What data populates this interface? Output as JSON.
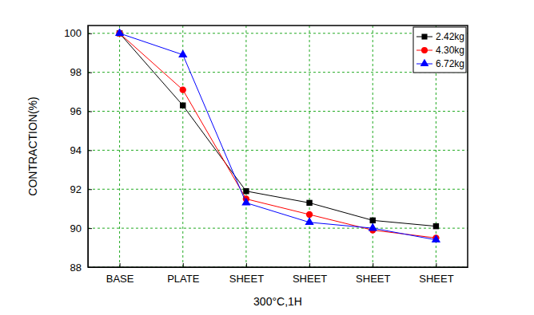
{
  "chart_data": {
    "type": "line",
    "x_label": "300°C,1H",
    "y_label": "CONTRACTION(%)",
    "categories": [
      "BASE",
      "PLATE",
      "SHEET",
      "SHEET",
      "SHEET",
      "SHEET"
    ],
    "series": [
      {
        "name": "2.42kg",
        "color": "#000000",
        "marker": "square",
        "line_style": "solid",
        "values": [
          100,
          96.3,
          91.9,
          91.3,
          90.4,
          90.1
        ]
      },
      {
        "name": "4.30kg",
        "color": "#ff0000",
        "marker": "circle",
        "line_style": "solid",
        "values": [
          100,
          97.1,
          91.5,
          90.7,
          89.9,
          89.5
        ]
      },
      {
        "name": "6.72kg",
        "color": "#0000ff",
        "marker": "triangle",
        "line_style": "solid",
        "values": [
          100,
          98.9,
          91.3,
          90.3,
          90.0,
          89.4
        ]
      }
    ],
    "ylim": [
      88,
      100.4
    ],
    "yticks": [
      88,
      90,
      92,
      94,
      96,
      98,
      100
    ],
    "grid": true,
    "legend": "upper right"
  }
}
